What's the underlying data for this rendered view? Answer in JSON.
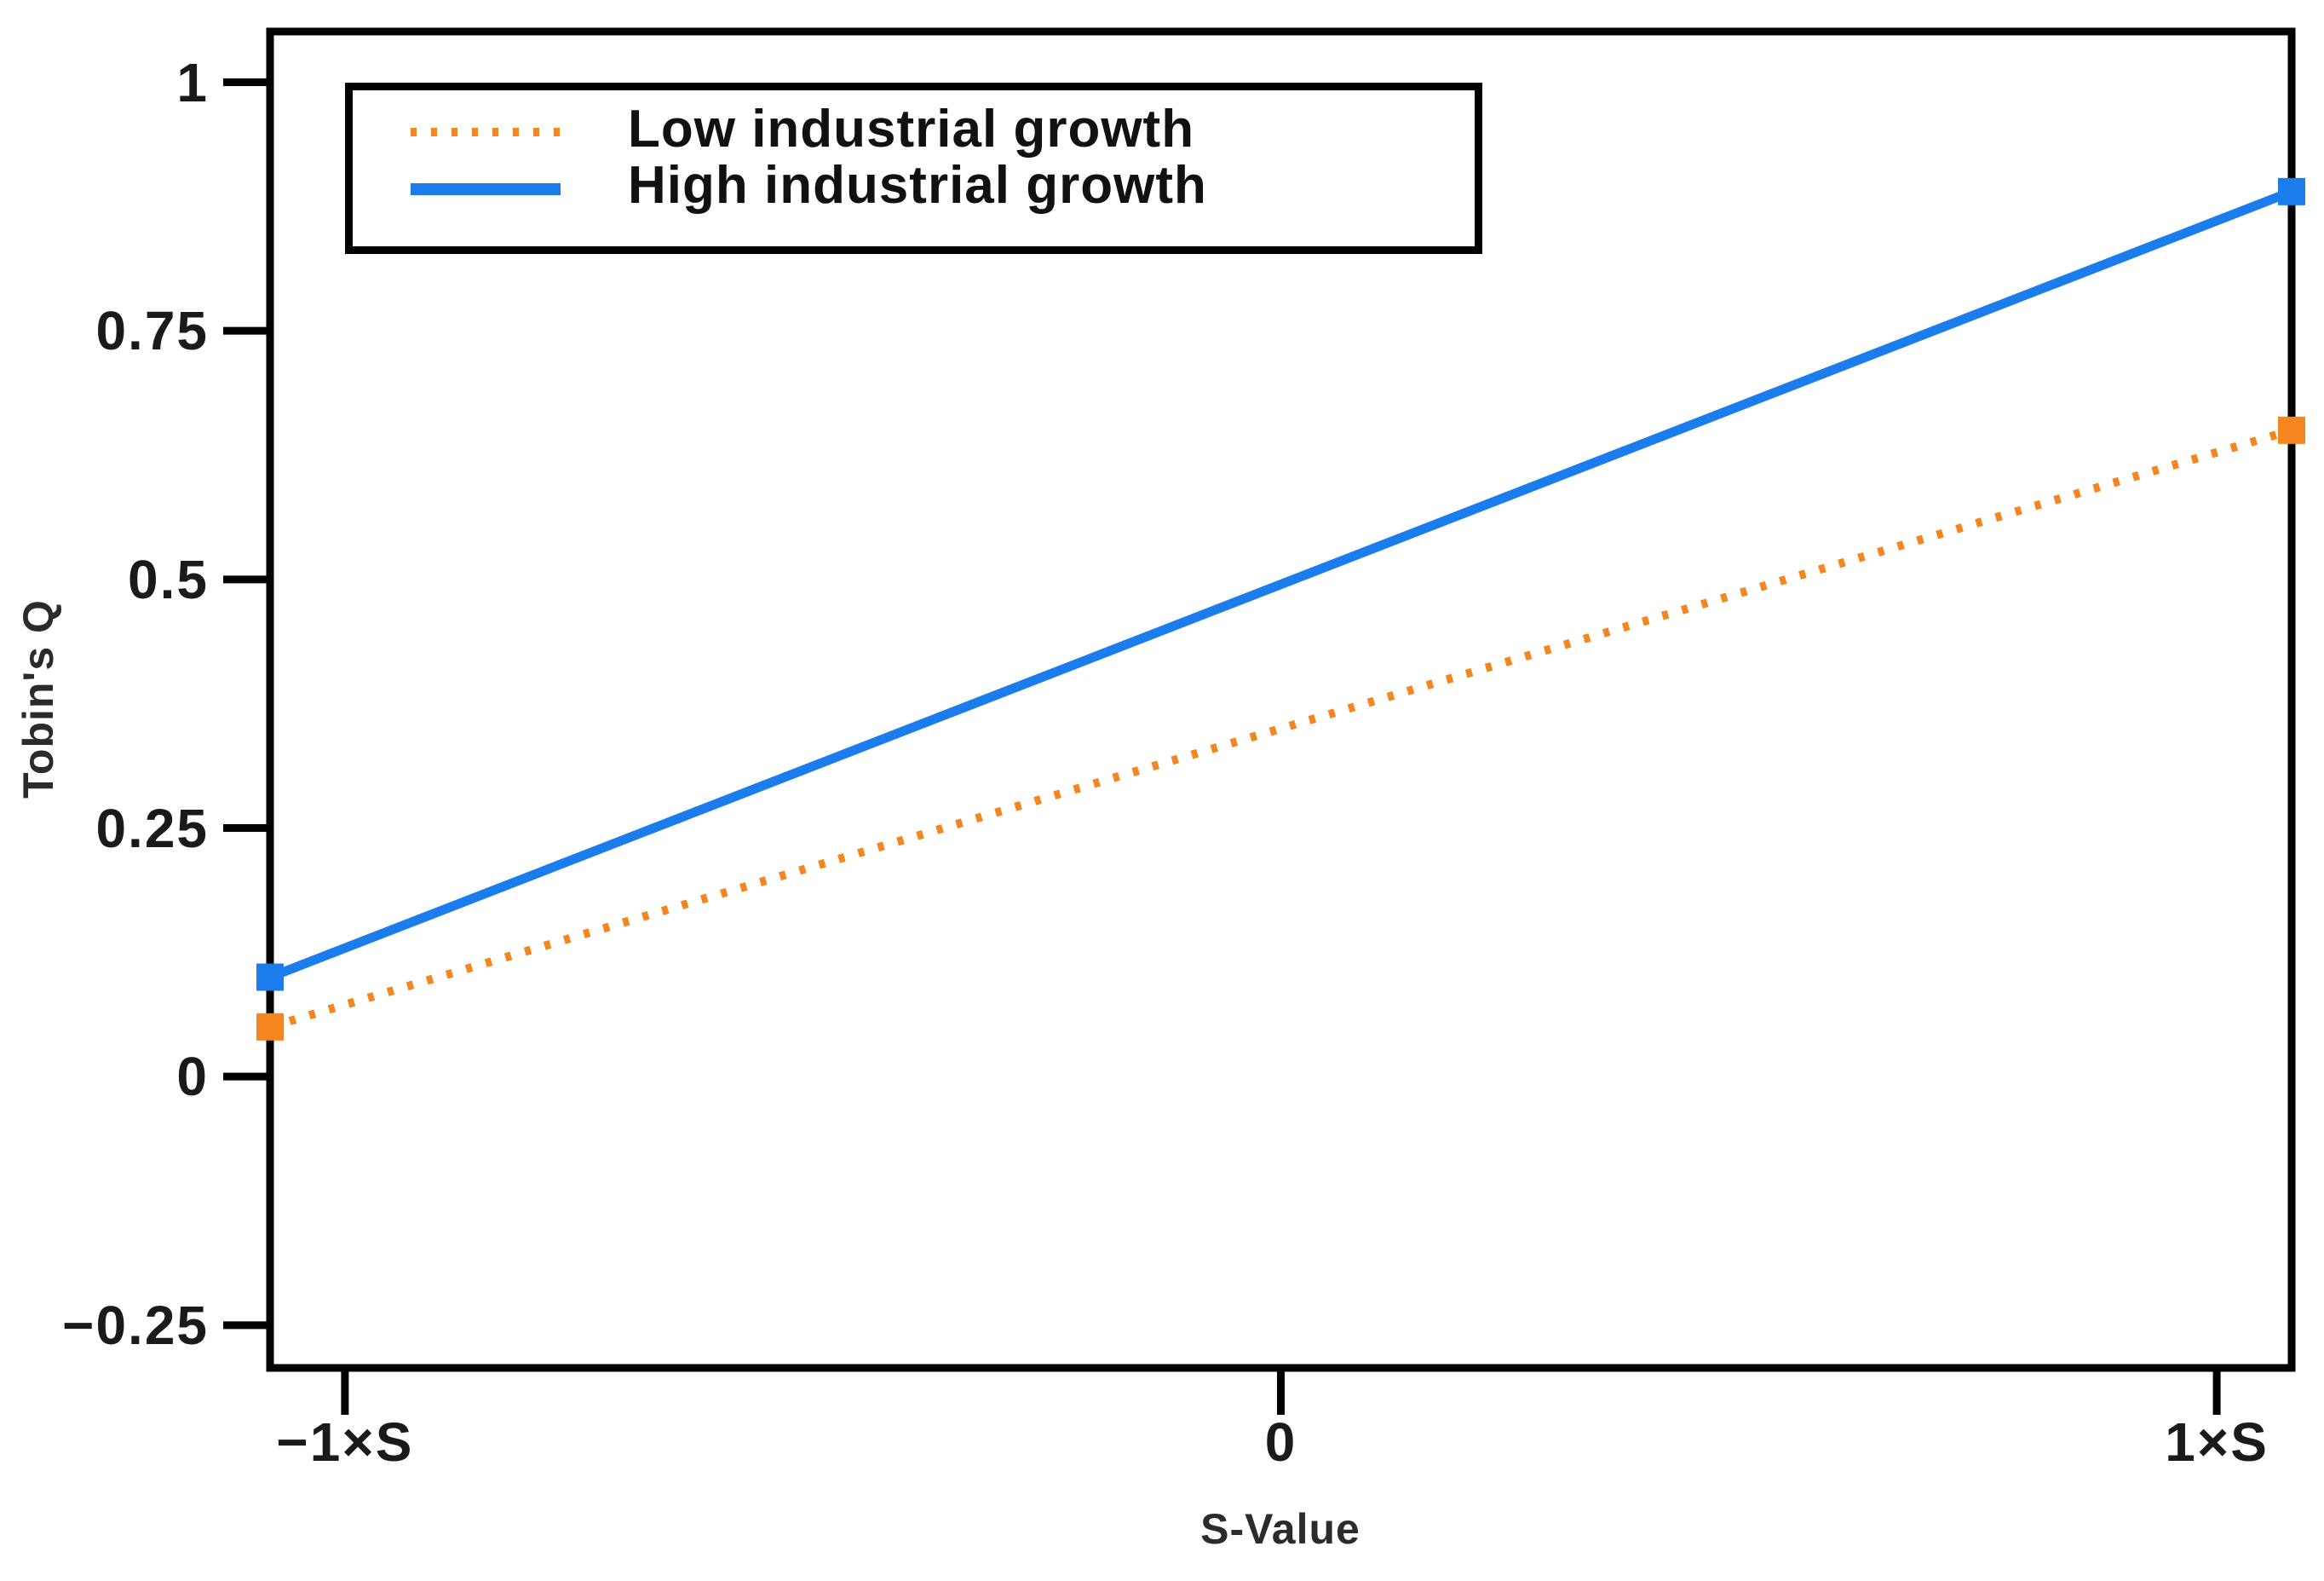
{
  "chart_data": {
    "type": "line",
    "title": "",
    "xlabel": "S-Value",
    "ylabel": "Tobin's Q",
    "grid": false,
    "legend_position": "top-left",
    "x_tick_labels": [
      "−1×S",
      "0",
      "1×S"
    ],
    "x_tick_values": [
      -1,
      0,
      1
    ],
    "y_tick_labels": [
      "1",
      "0.75",
      "0.5",
      "0.25",
      "0",
      "−0.25"
    ],
    "y_tick_values": [
      1,
      0.75,
      0.5,
      0.25,
      0,
      -0.25
    ],
    "xlim": [
      -1.08,
      1.08
    ],
    "ylim": [
      -0.293,
      1.051
    ],
    "axis_color": "#000000",
    "series": [
      {
        "name": "Low industrial growth",
        "color": "#F5851E",
        "style": "dotted",
        "marker": "square",
        "x": [
          -1.08,
          1.08
        ],
        "values": [
          0.05,
          0.65
        ]
      },
      {
        "name": "High industrial growth",
        "color": "#1B7CEE",
        "style": "solid",
        "marker": "square",
        "x": [
          -1.08,
          1.08
        ],
        "values": [
          0.1,
          0.89
        ]
      }
    ]
  }
}
